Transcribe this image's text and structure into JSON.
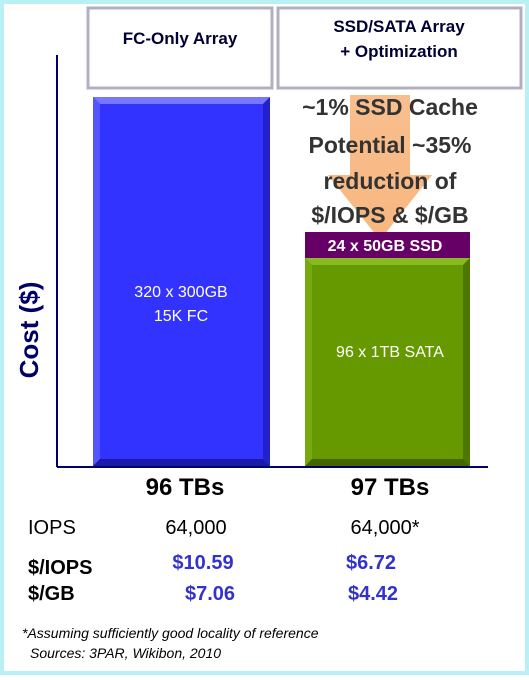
{
  "header": {
    "columns": [
      "FC-Only Array",
      "SSD/SATA Array\n+ Optimization"
    ]
  },
  "axis_label": "Cost ($)",
  "bars": {
    "fc": [
      "320 x 300GB",
      "15K FC"
    ],
    "ssd": "24 x 50GB SSD",
    "sata": "96 x 1TB SATA"
  },
  "callout": [
    "~1% SSD Cache",
    "Potential ~35%",
    "reduction of",
    "$/IOPS & $/GB"
  ],
  "capacities": [
    "96 TBs",
    "97 TBs"
  ],
  "table": {
    "rows": [
      [
        "IOPS",
        "64,000",
        "64,000*"
      ],
      [
        "$/IOPS",
        "$10.59",
        "$6.72"
      ],
      [
        "$/GB",
        "$7.06",
        "$4.42"
      ]
    ]
  },
  "footnotes": [
    "*Assuming sufficiently good locality of reference",
    "Sources: 3PAR, Wikibon, 2010"
  ]
}
